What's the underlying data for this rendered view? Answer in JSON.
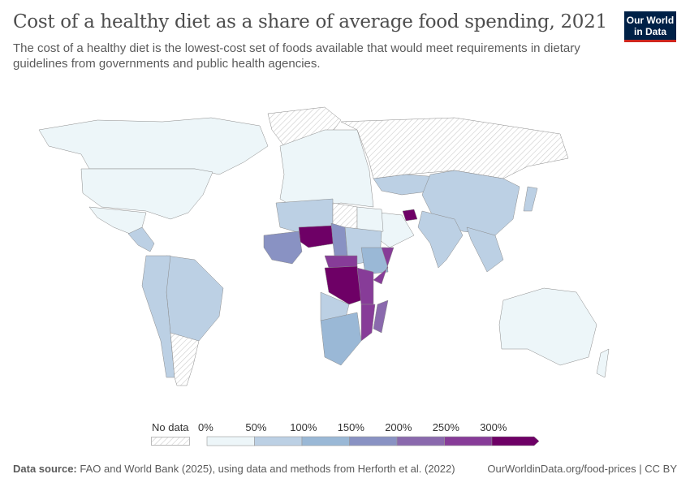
{
  "header": {
    "title": "Cost of a healthy diet as a share of average food spending, 2021",
    "subtitle": "The cost of a healthy diet is the lowest-cost set of foods available that would meet requirements in dietary guidelines from governments and public health agencies.",
    "logo": "Our World in Data"
  },
  "legend": {
    "no_data_label": "No data",
    "ticks": [
      "0%",
      "50%",
      "100%",
      "150%",
      "200%",
      "250%",
      "300%"
    ],
    "bins": [
      {
        "range": "0-50%",
        "color": "#edf6f9"
      },
      {
        "range": "50-100%",
        "color": "#bcd0e4"
      },
      {
        "range": "100-150%",
        "color": "#9ab8d6"
      },
      {
        "range": "150-200%",
        "color": "#8992c3"
      },
      {
        "range": "200-250%",
        "color": "#8a69ad"
      },
      {
        "range": "250-300%",
        "color": "#873c98"
      },
      {
        "range": ">300%",
        "color": "#6e0066"
      }
    ],
    "no_data_pattern": "hatched-gray"
  },
  "chart_data": {
    "type": "choropleth",
    "year": 2021,
    "regions": [
      {
        "name": "Canada",
        "bin": "0-50%"
      },
      {
        "name": "United States",
        "bin": "0-50%"
      },
      {
        "name": "Greenland",
        "bin": "No data"
      },
      {
        "name": "Mexico",
        "bin": "0-50%"
      },
      {
        "name": "Central America",
        "bin": "50-100%"
      },
      {
        "name": "Brazil",
        "bin": "50-100%"
      },
      {
        "name": "Andean South America",
        "bin": "50-100%"
      },
      {
        "name": "Argentina",
        "bin": "No data"
      },
      {
        "name": "Europe",
        "bin": "0-50%"
      },
      {
        "name": "Russia",
        "bin": "No data"
      },
      {
        "name": "Kazakhstan",
        "bin": "50-100%"
      },
      {
        "name": "China",
        "bin": "50-100%"
      },
      {
        "name": "India",
        "bin": "50-100%"
      },
      {
        "name": "Southeast Asia",
        "bin": "50-100%"
      },
      {
        "name": "Japan",
        "bin": "50-100%"
      },
      {
        "name": "Arabian Peninsula",
        "bin": "0-50%"
      },
      {
        "name": "Syria",
        "bin": ">300%"
      },
      {
        "name": "Algeria",
        "bin": "50-100%"
      },
      {
        "name": "Libya",
        "bin": "No data"
      },
      {
        "name": "Egypt",
        "bin": "0-50%"
      },
      {
        "name": "Niger",
        "bin": ">300%"
      },
      {
        "name": "Chad",
        "bin": "150-200%"
      },
      {
        "name": "Sudan",
        "bin": "50-100%"
      },
      {
        "name": "Ethiopia",
        "bin": "100-150%"
      },
      {
        "name": "Somalia",
        "bin": "250-300%"
      },
      {
        "name": "West Africa",
        "bin": "150-200%"
      },
      {
        "name": "Central African Republic",
        "bin": "250-300%"
      },
      {
        "name": "DR Congo",
        "bin": ">300%"
      },
      {
        "name": "Tanzania",
        "bin": "250-300%"
      },
      {
        "name": "Mozambique",
        "bin": "250-300%"
      },
      {
        "name": "Madagascar",
        "bin": "200-250%"
      },
      {
        "name": "Angola",
        "bin": "50-100%"
      },
      {
        "name": "Southern Africa",
        "bin": "100-150%"
      },
      {
        "name": "Australia",
        "bin": "0-50%"
      },
      {
        "name": "New Zealand",
        "bin": "0-50%"
      }
    ]
  },
  "footer": {
    "source_label": "Data source:",
    "source_text": "FAO and World Bank (2025), using data and methods from Herforth et al. (2022)",
    "link": "OurWorldinData.org/food-prices | CC BY"
  }
}
